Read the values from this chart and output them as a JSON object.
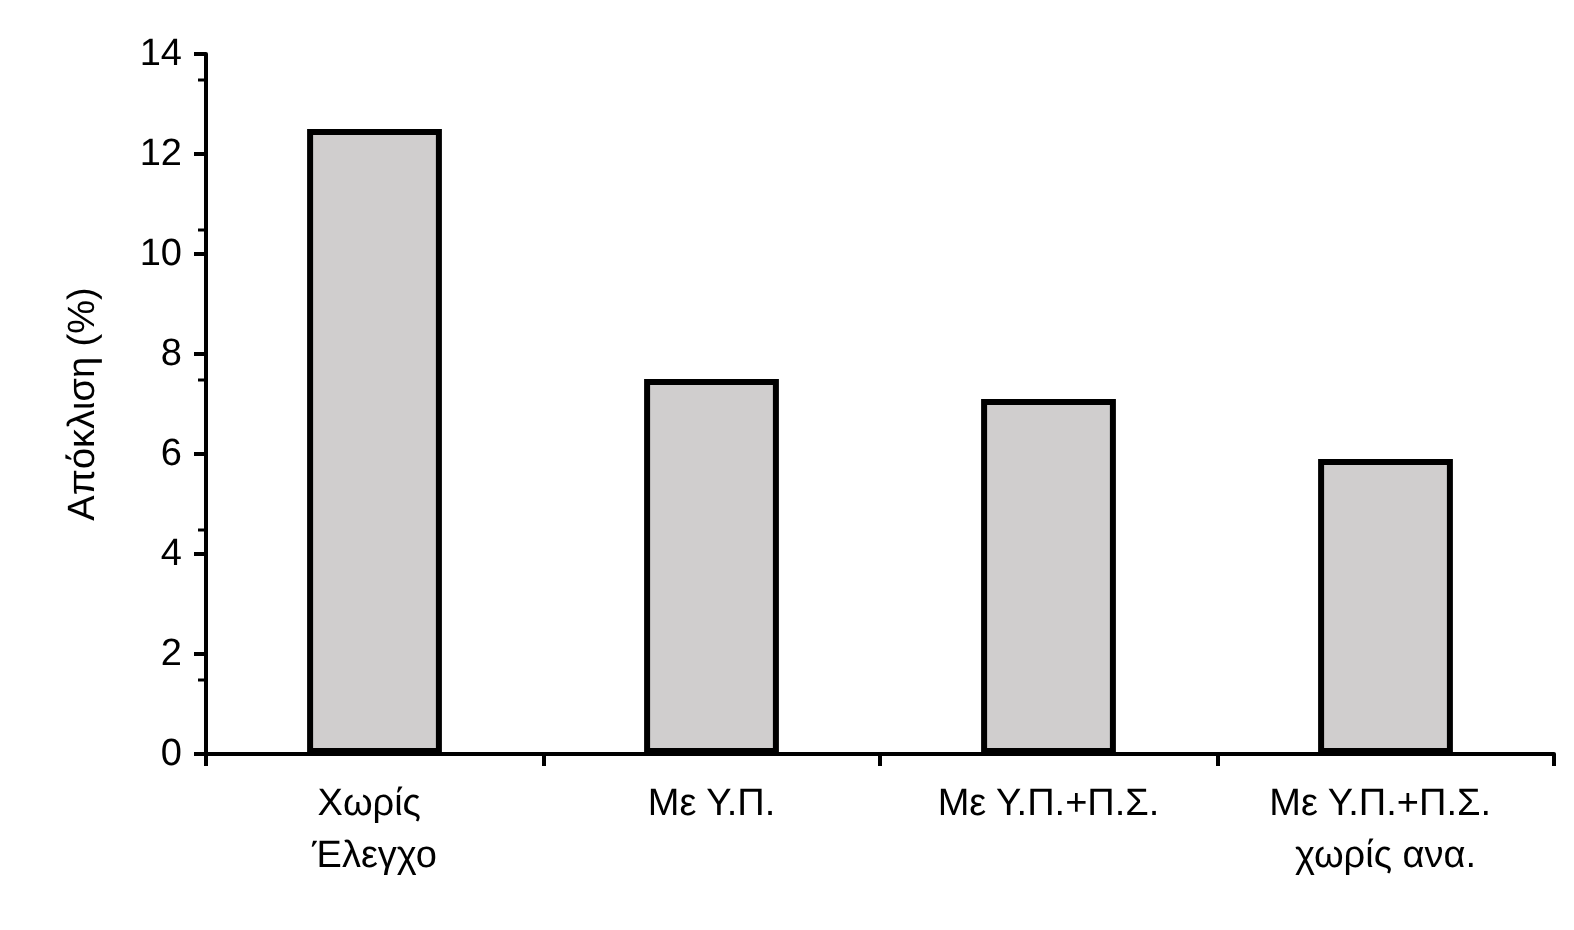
{
  "chart_data": {
    "type": "bar",
    "ylabel": "Απόκλιση (%)",
    "categories": [
      "Χωρίς Έλεγχο",
      "Με Υ.Π.",
      "Με Υ.Π.+Π.Σ.",
      "Με Υ.Π.+Π.Σ. χωρίς ανα."
    ],
    "values": [
      12.5,
      7.5,
      7.1,
      5.9
    ],
    "color": "#d0cece",
    "ylim": [
      0,
      14
    ],
    "yticks": [
      0,
      2,
      4,
      6,
      8,
      10,
      12,
      14
    ],
    "grid": false
  }
}
